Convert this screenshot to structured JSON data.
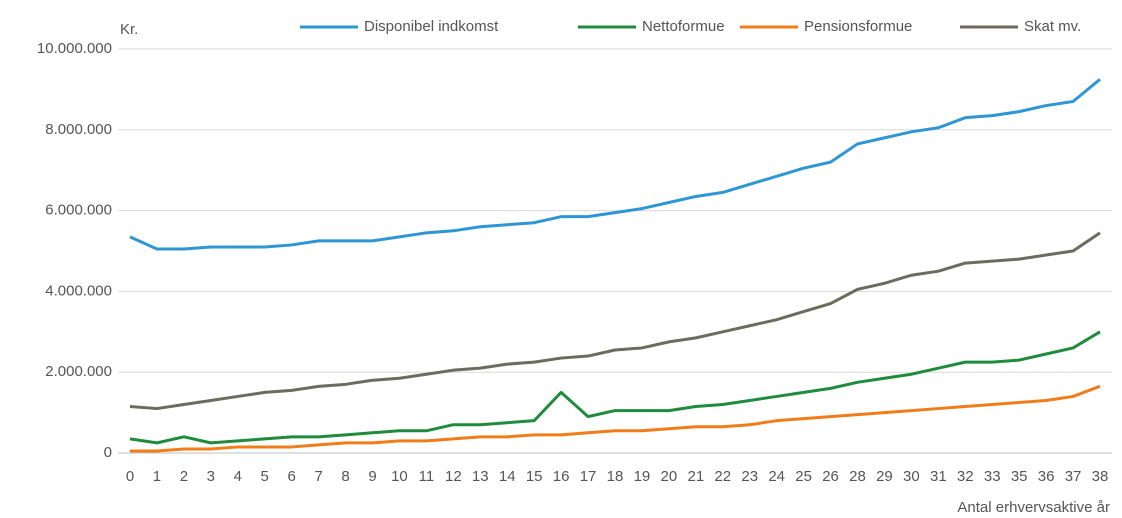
{
  "chart_data": {
    "type": "line",
    "y_label": "Kr.",
    "x_label": "Antal erhvervsaktive år",
    "categories": [
      0,
      1,
      2,
      3,
      4,
      5,
      6,
      7,
      8,
      9,
      10,
      11,
      12,
      13,
      14,
      15,
      16,
      17,
      18,
      19,
      20,
      21,
      22,
      23,
      24,
      25,
      26,
      28,
      29,
      30,
      31,
      32,
      33,
      35,
      36,
      37,
      38
    ],
    "ylim": [
      0,
      10000000
    ],
    "yticks": [
      0,
      {
        "value": 2000000,
        "label": "2.000.000"
      },
      {
        "value": 4000000,
        "label": "4.000.000"
      },
      {
        "value": 6000000,
        "label": "6.000.000"
      },
      {
        "value": 8000000,
        "label": "8.000.000"
      },
      {
        "value": 10000000,
        "label": "10.000.000"
      }
    ],
    "grid": true,
    "legend": "top",
    "series": [
      {
        "name": "Disponibel indkomst",
        "color": "#2e96d4",
        "values": [
          5350000,
          5050000,
          5050000,
          5100000,
          5100000,
          5100000,
          5150000,
          5250000,
          5250000,
          5250000,
          5350000,
          5450000,
          5500000,
          5600000,
          5650000,
          5700000,
          5850000,
          5850000,
          5950000,
          6050000,
          6200000,
          6350000,
          6450000,
          6650000,
          6850000,
          7050000,
          7200000,
          7650000,
          7800000,
          7950000,
          8050000,
          8300000,
          8350000,
          8450000,
          8600000,
          8700000,
          9250000
        ]
      },
      {
        "name": "Nettoformue",
        "color": "#1e8c3c",
        "values": [
          350000,
          250000,
          400000,
          250000,
          300000,
          350000,
          400000,
          400000,
          450000,
          500000,
          550000,
          550000,
          700000,
          700000,
          750000,
          800000,
          1500000,
          900000,
          1050000,
          1050000,
          1050000,
          1150000,
          1200000,
          1300000,
          1400000,
          1500000,
          1600000,
          1750000,
          1850000,
          1950000,
          2100000,
          2250000,
          2250000,
          2300000,
          2450000,
          2600000,
          3000000
        ]
      },
      {
        "name": "Pensionsformue",
        "color": "#f07d1a",
        "values": [
          50000,
          50000,
          100000,
          100000,
          150000,
          150000,
          150000,
          200000,
          250000,
          250000,
          300000,
          300000,
          350000,
          400000,
          400000,
          450000,
          450000,
          500000,
          550000,
          550000,
          600000,
          650000,
          650000,
          700000,
          800000,
          850000,
          900000,
          950000,
          1000000,
          1050000,
          1100000,
          1150000,
          1200000,
          1250000,
          1300000,
          1400000,
          1650000
        ]
      },
      {
        "name": "Skat mv.",
        "color": "#6b6b5e",
        "values": [
          1150000,
          1100000,
          1200000,
          1300000,
          1400000,
          1500000,
          1550000,
          1650000,
          1700000,
          1800000,
          1850000,
          1950000,
          2050000,
          2100000,
          2200000,
          2250000,
          2350000,
          2400000,
          2550000,
          2600000,
          2750000,
          2850000,
          3000000,
          3150000,
          3300000,
          3500000,
          3700000,
          4050000,
          4200000,
          4400000,
          4500000,
          4700000,
          4750000,
          4800000,
          4900000,
          5000000,
          5450000
        ]
      }
    ]
  }
}
